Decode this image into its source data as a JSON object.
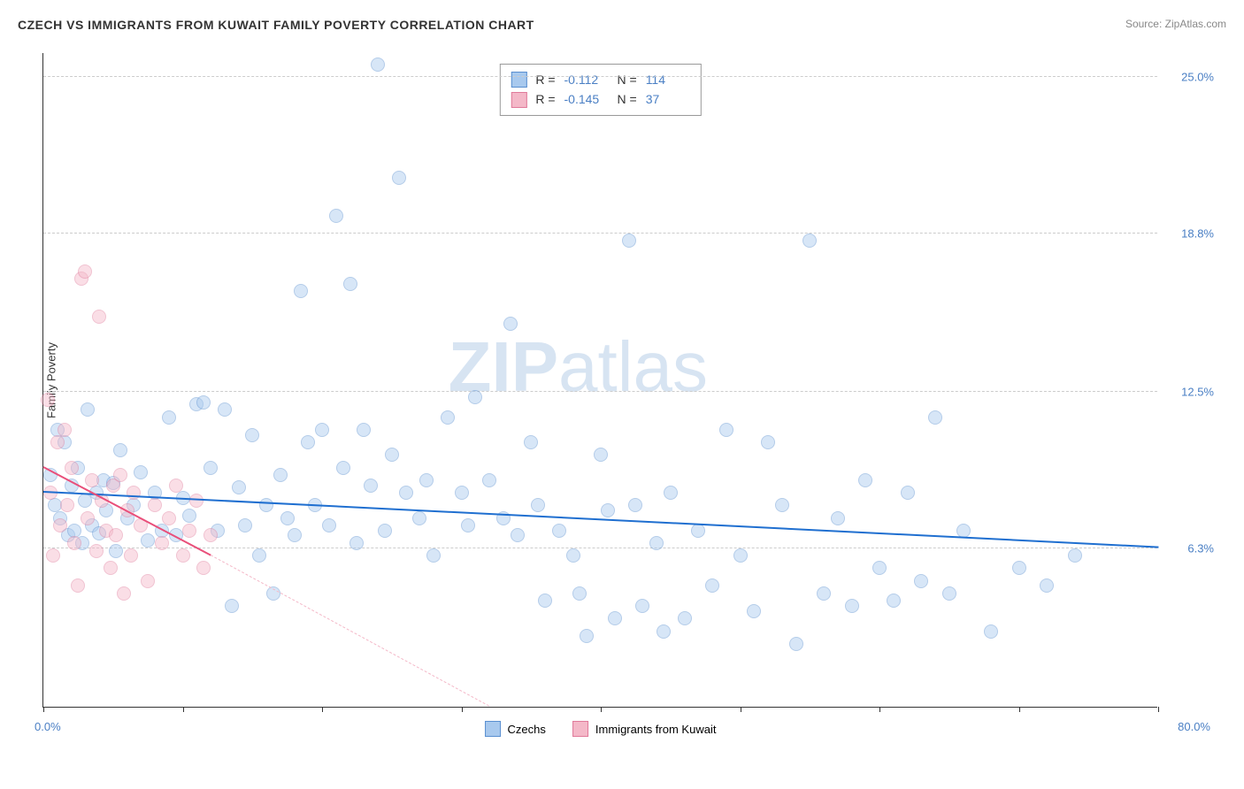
{
  "title": "CZECH VS IMMIGRANTS FROM KUWAIT FAMILY POVERTY CORRELATION CHART",
  "source": "Source: ZipAtlas.com",
  "watermark_bold": "ZIP",
  "watermark_light": "atlas",
  "ylabel": "Family Poverty",
  "chart": {
    "type": "scatter",
    "xlim": [
      0,
      80
    ],
    "ylim": [
      0,
      26
    ],
    "x_origin_label": "0.0%",
    "x_max_label": "80.0%",
    "x_ticks": [
      0,
      10,
      20,
      30,
      40,
      50,
      60,
      70,
      80
    ],
    "y_gridlines": [
      {
        "value": 6.3,
        "label": "6.3%"
      },
      {
        "value": 12.5,
        "label": "12.5%"
      },
      {
        "value": 18.8,
        "label": "18.8%"
      },
      {
        "value": 25.0,
        "label": "25.0%"
      }
    ],
    "series": [
      {
        "name": "Czechs",
        "label": "Czechs",
        "color_fill": "#a8c9ee",
        "color_stroke": "#5a8fd0",
        "fill_opacity": 0.45,
        "marker_radius": 8,
        "trendline": {
          "x1": 0,
          "y1": 8.5,
          "x2": 80,
          "y2": 6.3,
          "color": "#1f6fd0",
          "width": 2,
          "dash": false
        },
        "stats": {
          "R": "-0.112",
          "N": "114"
        },
        "points": [
          [
            0.5,
            9.2
          ],
          [
            0.8,
            8.0
          ],
          [
            1.0,
            11.0
          ],
          [
            1.2,
            7.5
          ],
          [
            1.5,
            10.5
          ],
          [
            1.8,
            6.8
          ],
          [
            2.0,
            8.8
          ],
          [
            2.2,
            7.0
          ],
          [
            2.5,
            9.5
          ],
          [
            2.8,
            6.5
          ],
          [
            3.0,
            8.2
          ],
          [
            3.2,
            11.8
          ],
          [
            3.5,
            7.2
          ],
          [
            3.8,
            8.5
          ],
          [
            4.0,
            6.9
          ],
          [
            4.3,
            9.0
          ],
          [
            4.5,
            7.8
          ],
          [
            5.0,
            8.9
          ],
          [
            5.2,
            6.2
          ],
          [
            5.5,
            10.2
          ],
          [
            6.0,
            7.5
          ],
          [
            6.5,
            8.0
          ],
          [
            7.0,
            9.3
          ],
          [
            7.5,
            6.6
          ],
          [
            8.0,
            8.5
          ],
          [
            8.5,
            7.0
          ],
          [
            9.0,
            11.5
          ],
          [
            9.5,
            6.8
          ],
          [
            10.0,
            8.3
          ],
          [
            10.5,
            7.6
          ],
          [
            11.0,
            12.0
          ],
          [
            11.5,
            12.1
          ],
          [
            12.0,
            9.5
          ],
          [
            12.5,
            7.0
          ],
          [
            13.0,
            11.8
          ],
          [
            13.5,
            4.0
          ],
          [
            14.0,
            8.7
          ],
          [
            14.5,
            7.2
          ],
          [
            15.0,
            10.8
          ],
          [
            15.5,
            6.0
          ],
          [
            16.0,
            8.0
          ],
          [
            16.5,
            4.5
          ],
          [
            17.0,
            9.2
          ],
          [
            17.5,
            7.5
          ],
          [
            18.0,
            6.8
          ],
          [
            18.5,
            16.5
          ],
          [
            19.0,
            10.5
          ],
          [
            19.5,
            8.0
          ],
          [
            20.0,
            11.0
          ],
          [
            20.5,
            7.2
          ],
          [
            21.0,
            19.5
          ],
          [
            21.5,
            9.5
          ],
          [
            22.0,
            16.8
          ],
          [
            22.5,
            6.5
          ],
          [
            23.0,
            11.0
          ],
          [
            23.5,
            8.8
          ],
          [
            24.0,
            25.5
          ],
          [
            24.5,
            7.0
          ],
          [
            25.0,
            10.0
          ],
          [
            25.5,
            21.0
          ],
          [
            26.0,
            8.5
          ],
          [
            27.0,
            7.5
          ],
          [
            27.5,
            9.0
          ],
          [
            28.0,
            6.0
          ],
          [
            29.0,
            11.5
          ],
          [
            30.0,
            8.5
          ],
          [
            30.5,
            7.2
          ],
          [
            31.0,
            12.3
          ],
          [
            32.0,
            9.0
          ],
          [
            33.0,
            7.5
          ],
          [
            33.5,
            15.2
          ],
          [
            34.0,
            6.8
          ],
          [
            35.0,
            10.5
          ],
          [
            35.5,
            8.0
          ],
          [
            36.0,
            4.2
          ],
          [
            37.0,
            7.0
          ],
          [
            38.0,
            6.0
          ],
          [
            38.5,
            4.5
          ],
          [
            39.0,
            2.8
          ],
          [
            40.0,
            10.0
          ],
          [
            40.5,
            7.8
          ],
          [
            41.0,
            3.5
          ],
          [
            42.0,
            18.5
          ],
          [
            42.5,
            8.0
          ],
          [
            43.0,
            4.0
          ],
          [
            44.0,
            6.5
          ],
          [
            44.5,
            3.0
          ],
          [
            45.0,
            8.5
          ],
          [
            46.0,
            3.5
          ],
          [
            47.0,
            7.0
          ],
          [
            48.0,
            4.8
          ],
          [
            49.0,
            11.0
          ],
          [
            50.0,
            6.0
          ],
          [
            51.0,
            3.8
          ],
          [
            52.0,
            10.5
          ],
          [
            53.0,
            8.0
          ],
          [
            54.0,
            2.5
          ],
          [
            55.0,
            18.5
          ],
          [
            56.0,
            4.5
          ],
          [
            57.0,
            7.5
          ],
          [
            58.0,
            4.0
          ],
          [
            59.0,
            9.0
          ],
          [
            60.0,
            5.5
          ],
          [
            61.0,
            4.2
          ],
          [
            62.0,
            8.5
          ],
          [
            63.0,
            5.0
          ],
          [
            64.0,
            11.5
          ],
          [
            65.0,
            4.5
          ],
          [
            66.0,
            7.0
          ],
          [
            68.0,
            3.0
          ],
          [
            70.0,
            5.5
          ],
          [
            72.0,
            4.8
          ],
          [
            74.0,
            6.0
          ]
        ]
      },
      {
        "name": "Immigrants from Kuwait",
        "label": "Immigrants from Kuwait",
        "color_fill": "#f4b8c8",
        "color_stroke": "#e07a9a",
        "fill_opacity": 0.45,
        "marker_radius": 8,
        "trendline": {
          "x1": 0,
          "y1": 9.5,
          "x2": 12,
          "y2": 6.0,
          "color": "#e94f7a",
          "width": 2,
          "dash": false
        },
        "trendline_ext": {
          "x1": 12,
          "y1": 6.0,
          "x2": 32,
          "y2": 0.0,
          "color": "#f4b8c8",
          "width": 1.5,
          "dash": true
        },
        "stats": {
          "R": "-0.145",
          "N": "37"
        },
        "points": [
          [
            0.3,
            12.2
          ],
          [
            0.5,
            8.5
          ],
          [
            0.7,
            6.0
          ],
          [
            1.0,
            10.5
          ],
          [
            1.2,
            7.2
          ],
          [
            1.5,
            11.0
          ],
          [
            1.7,
            8.0
          ],
          [
            2.0,
            9.5
          ],
          [
            2.2,
            6.5
          ],
          [
            2.5,
            4.8
          ],
          [
            2.7,
            17.0
          ],
          [
            3.0,
            17.3
          ],
          [
            3.2,
            7.5
          ],
          [
            3.5,
            9.0
          ],
          [
            3.8,
            6.2
          ],
          [
            4.0,
            15.5
          ],
          [
            4.2,
            8.2
          ],
          [
            4.5,
            7.0
          ],
          [
            4.8,
            5.5
          ],
          [
            5.0,
            8.8
          ],
          [
            5.2,
            6.8
          ],
          [
            5.5,
            9.2
          ],
          [
            5.8,
            4.5
          ],
          [
            6.0,
            7.8
          ],
          [
            6.3,
            6.0
          ],
          [
            6.5,
            8.5
          ],
          [
            7.0,
            7.2
          ],
          [
            7.5,
            5.0
          ],
          [
            8.0,
            8.0
          ],
          [
            8.5,
            6.5
          ],
          [
            9.0,
            7.5
          ],
          [
            9.5,
            8.8
          ],
          [
            10.0,
            6.0
          ],
          [
            10.5,
            7.0
          ],
          [
            11.0,
            8.2
          ],
          [
            11.5,
            5.5
          ],
          [
            12.0,
            6.8
          ]
        ]
      }
    ]
  },
  "legend_stats_labels": {
    "R": "R =",
    "N": "N ="
  },
  "legend_bottom": [
    {
      "label": "Czechs",
      "fill": "#a8c9ee",
      "stroke": "#5a8fd0"
    },
    {
      "label": "Immigrants from Kuwait",
      "fill": "#f4b8c8",
      "stroke": "#e07a9a"
    }
  ]
}
